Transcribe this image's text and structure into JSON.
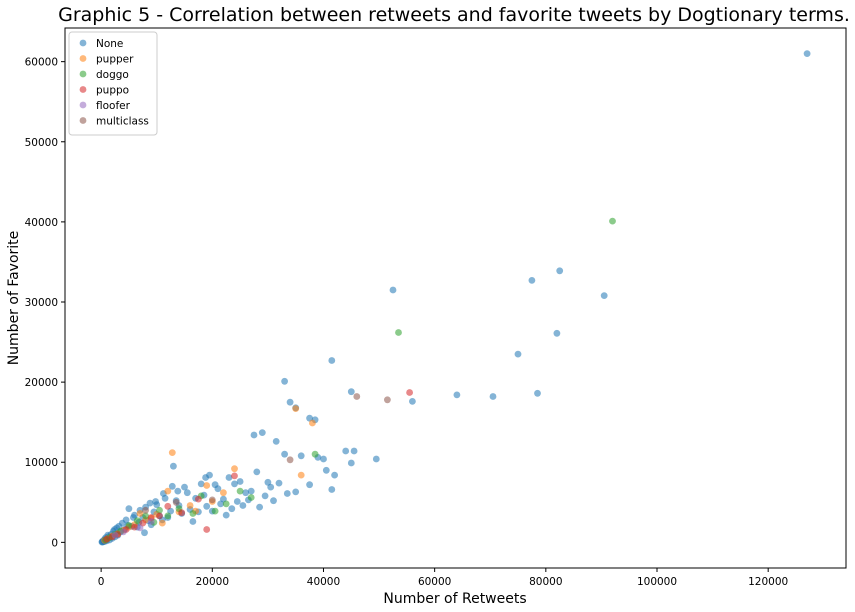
{
  "chart_data": {
    "type": "scatter",
    "title": "Graphic 5 - Correlation between retweets and favorite tweets by Dogtionary terms.",
    "xlabel": "Number of Retweets",
    "ylabel": "Number of Favorite",
    "xlim": [
      -6500,
      134000
    ],
    "ylim": [
      -3200,
      64200
    ],
    "xticks": [
      0,
      20000,
      40000,
      60000,
      80000,
      100000,
      120000
    ],
    "xtick_labels": [
      "0",
      "20000",
      "40000",
      "60000",
      "80000",
      "100000",
      "120000"
    ],
    "yticks": [
      0,
      10000,
      20000,
      30000,
      40000,
      50000,
      60000
    ],
    "ytick_labels": [
      "0",
      "10000",
      "20000",
      "30000",
      "40000",
      "50000",
      "60000"
    ],
    "grid": false,
    "legend": "top-left",
    "marker_alpha": 0.55,
    "series": [
      {
        "name": "None",
        "color": "#1f77b4",
        "points": [
          [
            127000,
            61000
          ],
          [
            82500,
            33900
          ],
          [
            77500,
            32700
          ],
          [
            90500,
            30800
          ],
          [
            52500,
            31500
          ],
          [
            82000,
            26100
          ],
          [
            75000,
            23500
          ],
          [
            41500,
            22700
          ],
          [
            33000,
            20100
          ],
          [
            45000,
            18800
          ],
          [
            56000,
            17600
          ],
          [
            64000,
            18400
          ],
          [
            70500,
            18200
          ],
          [
            78500,
            18600
          ],
          [
            34000,
            17500
          ],
          [
            35000,
            16800
          ],
          [
            38500,
            15300
          ],
          [
            37500,
            15500
          ],
          [
            29000,
            13700
          ],
          [
            27500,
            13400
          ],
          [
            31500,
            12600
          ],
          [
            33000,
            11000
          ],
          [
            36000,
            10800
          ],
          [
            39000,
            10600
          ],
          [
            40000,
            10400
          ],
          [
            44000,
            11400
          ],
          [
            45500,
            11400
          ],
          [
            49500,
            10400
          ],
          [
            45000,
            9900
          ],
          [
            40500,
            9000
          ],
          [
            42000,
            8400
          ],
          [
            41500,
            6600
          ],
          [
            37500,
            7200
          ],
          [
            35000,
            6300
          ],
          [
            33500,
            6100
          ],
          [
            30000,
            7500
          ],
          [
            28000,
            8800
          ],
          [
            26000,
            6200
          ],
          [
            25000,
            7600
          ],
          [
            23000,
            8100
          ],
          [
            21000,
            6700
          ],
          [
            19500,
            8400
          ],
          [
            18000,
            7300
          ],
          [
            17000,
            5500
          ],
          [
            15500,
            6200
          ],
          [
            14000,
            4600
          ],
          [
            12500,
            3900
          ],
          [
            13000,
            9500
          ],
          [
            11500,
            5500
          ],
          [
            10500,
            3300
          ],
          [
            9500,
            3800
          ],
          [
            8500,
            2700
          ],
          [
            7500,
            3100
          ],
          [
            6500,
            1900
          ],
          [
            5500,
            2000
          ],
          [
            5000,
            4200
          ],
          [
            4200,
            1600
          ],
          [
            3500,
            1300
          ],
          [
            3000,
            900
          ],
          [
            2500,
            700
          ],
          [
            2000,
            500
          ],
          [
            1500,
            300
          ],
          [
            1000,
            200
          ],
          [
            600,
            100
          ],
          [
            300,
            50
          ],
          [
            150,
            30
          ],
          [
            800,
            600
          ],
          [
            1200,
            900
          ],
          [
            2200,
            1400
          ],
          [
            2800,
            1800
          ],
          [
            3800,
            2400
          ],
          [
            4500,
            2800
          ],
          [
            6000,
            3400
          ],
          [
            7000,
            4000
          ],
          [
            8000,
            4400
          ],
          [
            9000,
            2200
          ],
          [
            10000,
            4700
          ],
          [
            11000,
            2800
          ],
          [
            12000,
            3100
          ],
          [
            13500,
            5200
          ],
          [
            14500,
            3600
          ],
          [
            15000,
            6900
          ],
          [
            16000,
            4100
          ],
          [
            16500,
            2600
          ],
          [
            17500,
            3800
          ],
          [
            18500,
            5900
          ],
          [
            19000,
            4500
          ],
          [
            20000,
            3900
          ],
          [
            21500,
            4800
          ],
          [
            22000,
            5400
          ],
          [
            22500,
            3400
          ],
          [
            23500,
            4200
          ],
          [
            24000,
            7300
          ],
          [
            24500,
            5100
          ],
          [
            25500,
            4600
          ],
          [
            26500,
            5300
          ],
          [
            27000,
            6400
          ],
          [
            28500,
            4400
          ],
          [
            29500,
            5800
          ],
          [
            30500,
            6900
          ],
          [
            31000,
            5200
          ],
          [
            32000,
            7400
          ],
          [
            20500,
            7200
          ],
          [
            18800,
            8100
          ],
          [
            13800,
            6400
          ],
          [
            12800,
            7000
          ],
          [
            11200,
            6100
          ],
          [
            9800,
            5100
          ],
          [
            8800,
            4900
          ],
          [
            7800,
            1200
          ],
          [
            6800,
            2500
          ],
          [
            5800,
            3100
          ],
          [
            4800,
            2100
          ],
          [
            3200,
            2000
          ],
          [
            2400,
            1600
          ],
          [
            1800,
            1000
          ],
          [
            1300,
            700
          ],
          [
            700,
            400
          ],
          [
            400,
            250
          ],
          [
            200,
            100
          ]
        ]
      },
      {
        "name": "pupper",
        "color": "#ff7f0e",
        "points": [
          [
            12800,
            11200
          ],
          [
            35000,
            16700
          ],
          [
            38000,
            14900
          ],
          [
            36000,
            8400
          ],
          [
            24000,
            9200
          ],
          [
            22000,
            6200
          ],
          [
            20000,
            5100
          ],
          [
            16000,
            4600
          ],
          [
            14000,
            3800
          ],
          [
            12000,
            6400
          ],
          [
            10000,
            3500
          ],
          [
            8000,
            2800
          ],
          [
            6000,
            2200
          ],
          [
            4000,
            1500
          ],
          [
            3000,
            1100
          ],
          [
            2000,
            800
          ],
          [
            1200,
            500
          ],
          [
            600,
            250
          ],
          [
            17000,
            3900
          ],
          [
            19000,
            7100
          ],
          [
            7000,
            3600
          ],
          [
            5000,
            1900
          ],
          [
            11000,
            2400
          ],
          [
            9000,
            3000
          ]
        ]
      },
      {
        "name": "doggo",
        "color": "#2ca02c",
        "points": [
          [
            92000,
            40100
          ],
          [
            53500,
            26200
          ],
          [
            38500,
            11000
          ],
          [
            25000,
            6400
          ],
          [
            22500,
            4800
          ],
          [
            18000,
            5800
          ],
          [
            16500,
            3600
          ],
          [
            14000,
            4200
          ],
          [
            12000,
            3300
          ],
          [
            10500,
            4000
          ],
          [
            8000,
            3300
          ],
          [
            6500,
            2700
          ],
          [
            5000,
            2100
          ],
          [
            3500,
            1400
          ],
          [
            2500,
            1000
          ],
          [
            1500,
            600
          ],
          [
            800,
            300
          ],
          [
            20500,
            3900
          ],
          [
            27000,
            5600
          ],
          [
            9500,
            2500
          ]
        ]
      },
      {
        "name": "puppo",
        "color": "#d62728",
        "points": [
          [
            55500,
            18700
          ],
          [
            19000,
            1600
          ],
          [
            14500,
            3700
          ],
          [
            12000,
            4500
          ],
          [
            10500,
            3300
          ],
          [
            9000,
            3100
          ],
          [
            7500,
            2400
          ],
          [
            6000,
            1900
          ],
          [
            4500,
            1600
          ],
          [
            3000,
            1000
          ],
          [
            2000,
            700
          ],
          [
            1000,
            400
          ],
          [
            24000,
            8300
          ],
          [
            17500,
            5400
          ]
        ]
      },
      {
        "name": "floofer",
        "color": "#9467bd",
        "points": [
          [
            9000,
            2600
          ],
          [
            7000,
            1800
          ],
          [
            4000,
            1300
          ],
          [
            2500,
            900
          ]
        ]
      },
      {
        "name": "multiclass",
        "color": "#8c564b",
        "points": [
          [
            46000,
            18200
          ],
          [
            51500,
            17800
          ],
          [
            34000,
            10300
          ],
          [
            20000,
            5300
          ],
          [
            13500,
            5000
          ],
          [
            8000,
            4000
          ]
        ]
      }
    ]
  }
}
